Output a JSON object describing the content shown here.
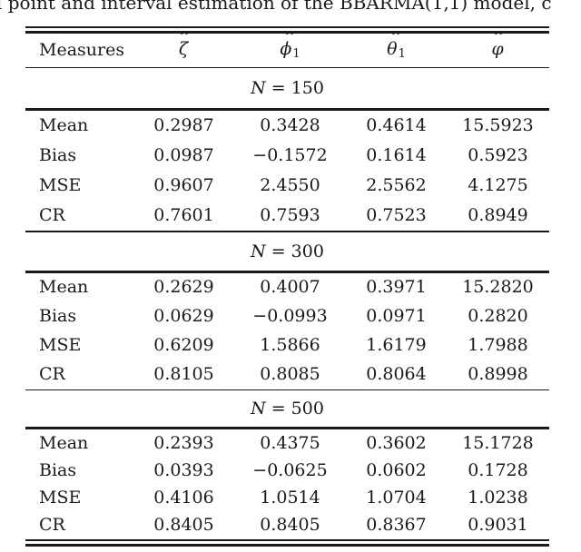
{
  "caption_fragment": "l point and interval estimation of the BBARMA(1,1) model, c",
  "colors": {
    "text": "#1a1a1a",
    "rule": "#1a1a1a",
    "background": "#ffffff"
  },
  "table": {
    "header": {
      "measures_label": "Measures",
      "columns": [
        {
          "hat": "ˆ",
          "glyph": "ζ",
          "sub": ""
        },
        {
          "hat": "ˆ",
          "glyph": "ϕ",
          "sub": "1"
        },
        {
          "hat": "ˆ",
          "glyph": "θ",
          "sub": "1"
        },
        {
          "hat": "ˆ",
          "glyph": "φ",
          "sub": ""
        }
      ]
    },
    "sections": [
      {
        "n_var": "N",
        "n_rest": "= 150",
        "rows": [
          {
            "label": "Mean",
            "values": [
              "0.2987",
              "0.3428",
              "0.4614",
              "15.5923"
            ]
          },
          {
            "label": "Bias",
            "values": [
              "0.0987",
              "−0.1572",
              "0.1614",
              "0.5923"
            ]
          },
          {
            "label": "MSE",
            "values": [
              "0.9607",
              "2.4550",
              "2.5562",
              "4.1275"
            ]
          },
          {
            "label": "CR",
            "values": [
              "0.7601",
              "0.7593",
              "0.7523",
              "0.8949"
            ]
          }
        ]
      },
      {
        "n_var": "N",
        "n_rest": "= 300",
        "rows": [
          {
            "label": "Mean",
            "values": [
              "0.2629",
              "0.4007",
              "0.3971",
              "15.2820"
            ]
          },
          {
            "label": "Bias",
            "values": [
              "0.0629",
              "−0.0993",
              "0.0971",
              "0.2820"
            ]
          },
          {
            "label": "MSE",
            "values": [
              "0.6209",
              "1.5866",
              "1.6179",
              "1.7988"
            ]
          },
          {
            "label": "CR",
            "values": [
              "0.8105",
              "0.8085",
              "0.8064",
              "0.8998"
            ]
          }
        ]
      },
      {
        "n_var": "N",
        "n_rest": "= 500",
        "rows": [
          {
            "label": "Mean",
            "values": [
              "0.2393",
              "0.4375",
              "0.3602",
              "15.1728"
            ]
          },
          {
            "label": "Bias",
            "values": [
              "0.0393",
              "−0.0625",
              "0.0602",
              "0.1728"
            ]
          },
          {
            "label": "MSE",
            "values": [
              "0.4106",
              "1.0514",
              "1.0704",
              "1.0238"
            ]
          },
          {
            "label": "CR",
            "values": [
              "0.8405",
              "0.8405",
              "0.8367",
              "0.9031"
            ]
          }
        ]
      }
    ]
  }
}
